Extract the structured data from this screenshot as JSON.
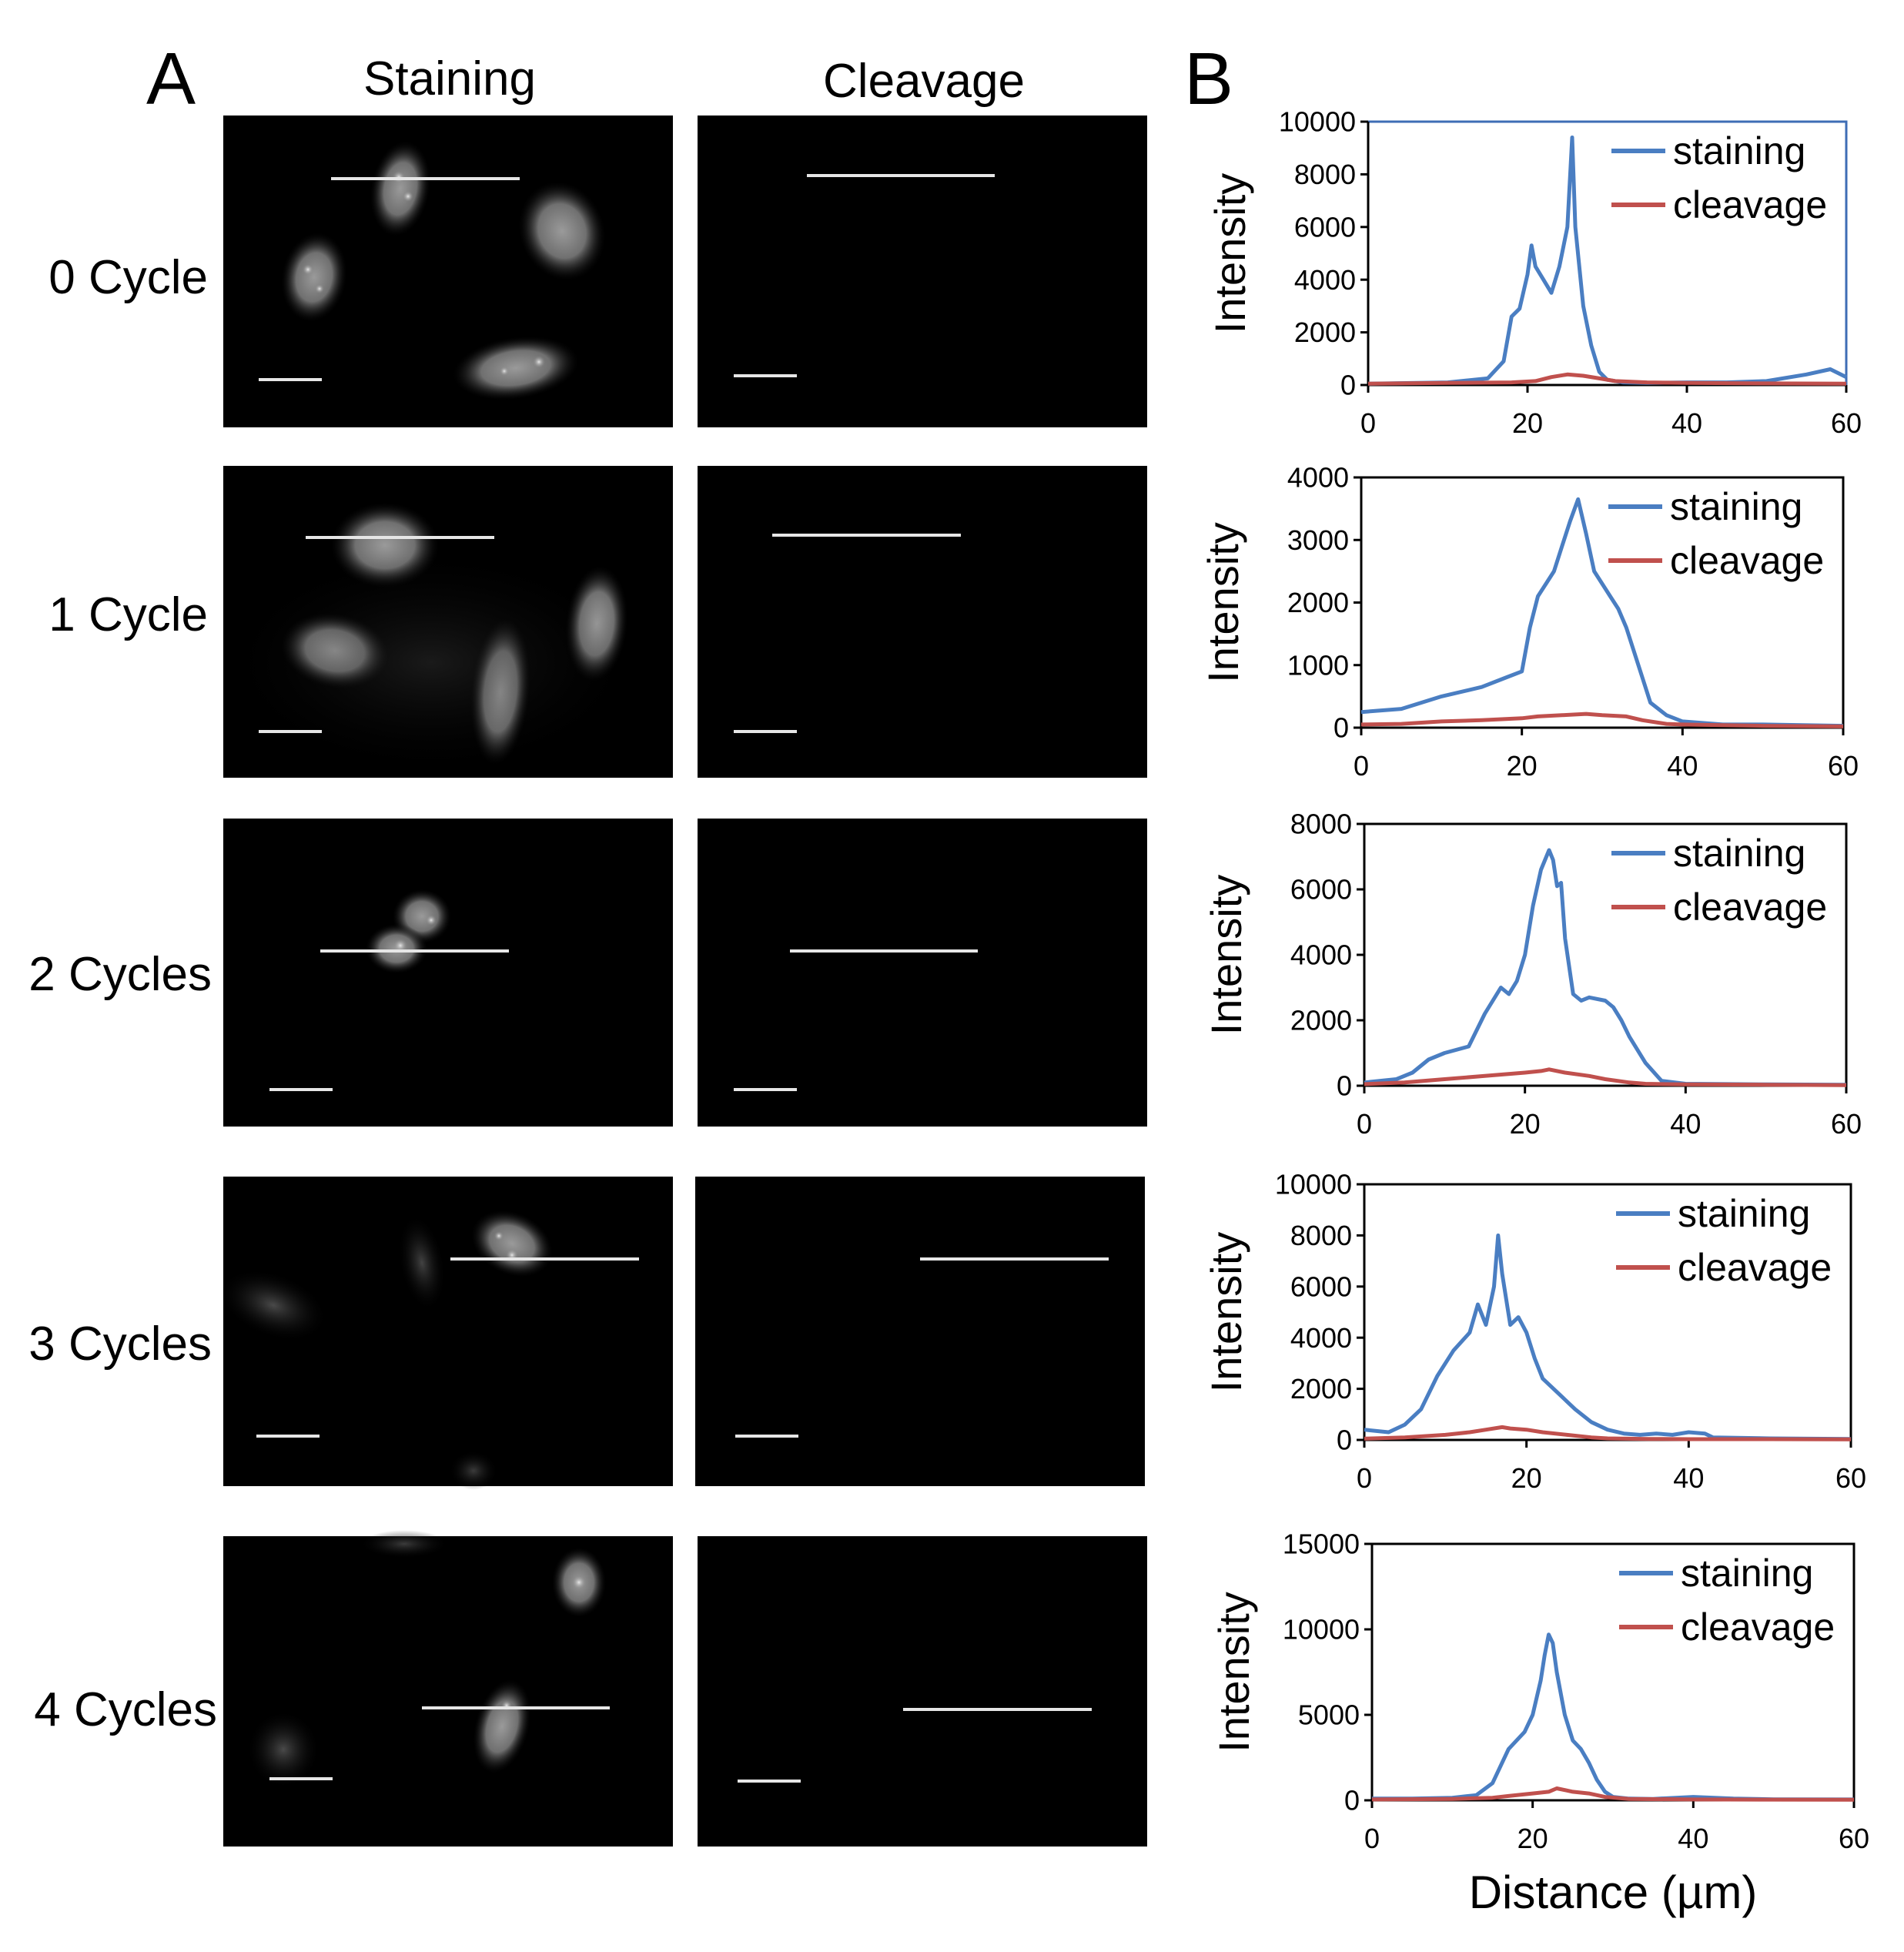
{
  "panels": {
    "a_label": "A",
    "b_label": "B"
  },
  "columns": {
    "staining": "Staining",
    "cleavage": "Cleavage"
  },
  "rows": [
    {
      "label": "0 Cycle"
    },
    {
      "label": "1 Cycle"
    },
    {
      "label": "2 Cycles"
    },
    {
      "label": "3 Cycles"
    },
    {
      "label": "4 Cycles"
    }
  ],
  "colors": {
    "staining": "#4a7ec2",
    "cleavage": "#c0504d",
    "first_chart_frame": "#3e6db5",
    "frame": "#000000",
    "micrograph_bg": "#000000"
  },
  "chart_data": [
    {
      "type": "line",
      "xlabel": "",
      "ylabel": "Intensity",
      "xlim": [
        0,
        60
      ],
      "ylim": [
        0,
        10000
      ],
      "xticks": [
        0,
        20,
        40,
        60
      ],
      "yticks": [
        0,
        2000,
        4000,
        6000,
        8000,
        10000
      ],
      "legend": "top-right",
      "series": [
        {
          "name": "staining",
          "x": [
            0,
            10,
            15,
            17,
            18,
            19,
            20,
            20.5,
            21,
            22,
            23,
            24,
            25,
            25.6,
            26,
            27,
            28,
            29,
            30,
            32,
            35,
            40,
            45,
            50,
            55,
            58,
            60
          ],
          "y": [
            50,
            100,
            250,
            900,
            2600,
            2900,
            4200,
            5300,
            4500,
            4000,
            3500,
            4500,
            6000,
            9400,
            6000,
            3000,
            1500,
            500,
            200,
            100,
            80,
            100,
            100,
            150,
            400,
            600,
            300
          ]
        },
        {
          "name": "cleavage",
          "x": [
            0,
            10,
            18,
            21,
            23,
            25,
            27,
            29,
            31,
            35,
            40,
            50,
            60
          ],
          "y": [
            50,
            80,
            100,
            150,
            300,
            400,
            350,
            250,
            150,
            100,
            80,
            60,
            50
          ]
        }
      ]
    },
    {
      "type": "line",
      "xlabel": "",
      "ylabel": "Intensity",
      "xlim": [
        0,
        60
      ],
      "ylim": [
        0,
        4000
      ],
      "xticks": [
        0,
        20,
        40,
        60
      ],
      "yticks": [
        0,
        1000,
        2000,
        3000,
        4000
      ],
      "legend": "top-right",
      "series": [
        {
          "name": "staining",
          "x": [
            0,
            5,
            10,
            15,
            18,
            20,
            21,
            22,
            23,
            24,
            25,
            26,
            27,
            28,
            29,
            30,
            31,
            32,
            33,
            35,
            36,
            38,
            40,
            45,
            50,
            55,
            60
          ],
          "y": [
            250,
            300,
            500,
            650,
            800,
            900,
            1600,
            2100,
            2300,
            2500,
            2900,
            3300,
            3650,
            3100,
            2500,
            2300,
            2100,
            1900,
            1600,
            800,
            400,
            200,
            100,
            50,
            50,
            40,
            30
          ]
        },
        {
          "name": "cleavage",
          "x": [
            0,
            5,
            10,
            15,
            20,
            22,
            25,
            28,
            30,
            33,
            35,
            38,
            40,
            45,
            50,
            60
          ],
          "y": [
            50,
            60,
            100,
            120,
            150,
            180,
            200,
            220,
            200,
            180,
            120,
            60,
            50,
            40,
            30,
            20
          ]
        }
      ]
    },
    {
      "type": "line",
      "xlabel": "",
      "ylabel": "Intensity",
      "xlim": [
        0,
        60
      ],
      "ylim": [
        0,
        8000
      ],
      "xticks": [
        0,
        20,
        40,
        60
      ],
      "yticks": [
        0,
        2000,
        4000,
        6000,
        8000
      ],
      "legend": "top-right",
      "series": [
        {
          "name": "staining",
          "x": [
            0,
            4,
            6,
            8,
            10,
            13,
            15,
            17,
            18,
            19,
            20,
            21,
            22,
            23,
            23.5,
            24,
            24.5,
            25,
            26,
            27,
            28,
            30,
            31,
            32,
            33,
            35,
            37,
            40,
            45,
            50,
            60
          ],
          "y": [
            100,
            200,
            400,
            800,
            1000,
            1200,
            2200,
            3000,
            2800,
            3200,
            4000,
            5500,
            6600,
            7200,
            6900,
            6100,
            6200,
            4500,
            2800,
            2600,
            2700,
            2600,
            2400,
            2000,
            1500,
            700,
            150,
            60,
            50,
            40,
            30
          ]
        },
        {
          "name": "cleavage",
          "x": [
            0,
            5,
            10,
            15,
            20,
            22,
            23,
            25,
            28,
            30,
            33,
            35,
            40,
            50,
            60
          ],
          "y": [
            50,
            100,
            200,
            300,
            400,
            450,
            500,
            400,
            300,
            200,
            100,
            60,
            40,
            30,
            20
          ]
        }
      ]
    },
    {
      "type": "line",
      "xlabel": "",
      "ylabel": "Intensity",
      "xlim": [
        0,
        60
      ],
      "ylim": [
        0,
        10000
      ],
      "xticks": [
        0,
        20,
        40,
        60
      ],
      "yticks": [
        0,
        2000,
        4000,
        6000,
        8000,
        10000
      ],
      "legend": "top-right",
      "series": [
        {
          "name": "staining",
          "x": [
            0,
            3,
            5,
            7,
            9,
            11,
            13,
            14,
            15,
            16,
            16.5,
            17,
            18,
            19,
            20,
            21,
            22,
            24,
            26,
            28,
            30,
            32,
            34,
            36,
            38,
            40,
            42,
            43,
            50,
            60
          ],
          "y": [
            400,
            300,
            600,
            1200,
            2500,
            3500,
            4200,
            5300,
            4500,
            6000,
            8000,
            6500,
            4500,
            4800,
            4200,
            3200,
            2400,
            1800,
            1200,
            700,
            400,
            250,
            200,
            250,
            200,
            300,
            250,
            100,
            60,
            40
          ]
        },
        {
          "name": "cleavage",
          "x": [
            0,
            5,
            10,
            13,
            15,
            17,
            18,
            20,
            22,
            25,
            28,
            30,
            35,
            40,
            50,
            60
          ],
          "y": [
            50,
            100,
            200,
            300,
            400,
            500,
            450,
            400,
            300,
            200,
            100,
            60,
            40,
            30,
            30,
            20
          ]
        }
      ]
    },
    {
      "type": "line",
      "xlabel": "Distance (µm)",
      "ylabel": "Intensity",
      "xlim": [
        0,
        60
      ],
      "ylim": [
        0,
        15000
      ],
      "xticks": [
        0,
        20,
        40,
        60
      ],
      "yticks": [
        0,
        5000,
        10000,
        15000
      ],
      "legend": "top-right",
      "series": [
        {
          "name": "staining",
          "x": [
            0,
            5,
            10,
            13,
            15,
            17,
            18,
            19,
            20,
            21,
            21.5,
            22,
            22.5,
            23,
            24,
            25,
            26,
            27,
            28,
            29,
            30,
            32,
            35,
            40,
            45,
            50,
            60
          ],
          "y": [
            100,
            100,
            150,
            300,
            1000,
            3000,
            3500,
            4000,
            5000,
            7000,
            8500,
            9700,
            9200,
            7500,
            5000,
            3500,
            3000,
            2200,
            1200,
            500,
            200,
            100,
            80,
            200,
            100,
            60,
            50
          ]
        },
        {
          "name": "cleavage",
          "x": [
            0,
            10,
            15,
            17,
            20,
            22,
            23,
            25,
            27,
            29,
            32,
            40,
            50,
            60
          ],
          "y": [
            50,
            80,
            150,
            250,
            400,
            500,
            700,
            500,
            400,
            200,
            80,
            50,
            40,
            30
          ]
        }
      ]
    }
  ]
}
